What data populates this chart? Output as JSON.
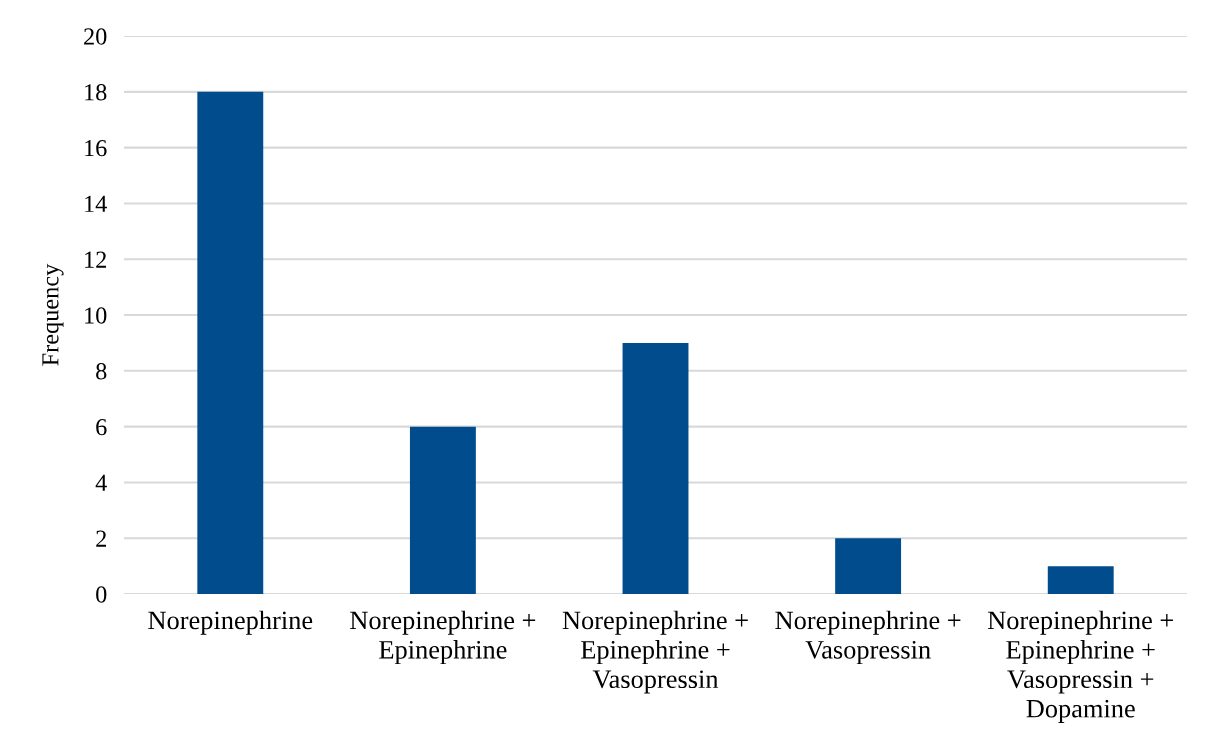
{
  "chart_data": {
    "type": "bar",
    "ylabel": "Frequency",
    "categories": [
      "Norepinephrine",
      "Norepinephrine + Epinephrine",
      "Norepinephrine + Epinephrine + Vasopressin",
      "Norepinephrine + Vasopressin",
      "Norepinephrine + Epinephrine + Vasopressin + Dopamine"
    ],
    "values": [
      18,
      6,
      9,
      2,
      1
    ],
    "color": "#004c8c",
    "ylim": [
      0,
      20
    ],
    "yticks": [
      0,
      2,
      4,
      6,
      8,
      10,
      12,
      14,
      16,
      18,
      20
    ],
    "grid": "y",
    "legend": false
  }
}
